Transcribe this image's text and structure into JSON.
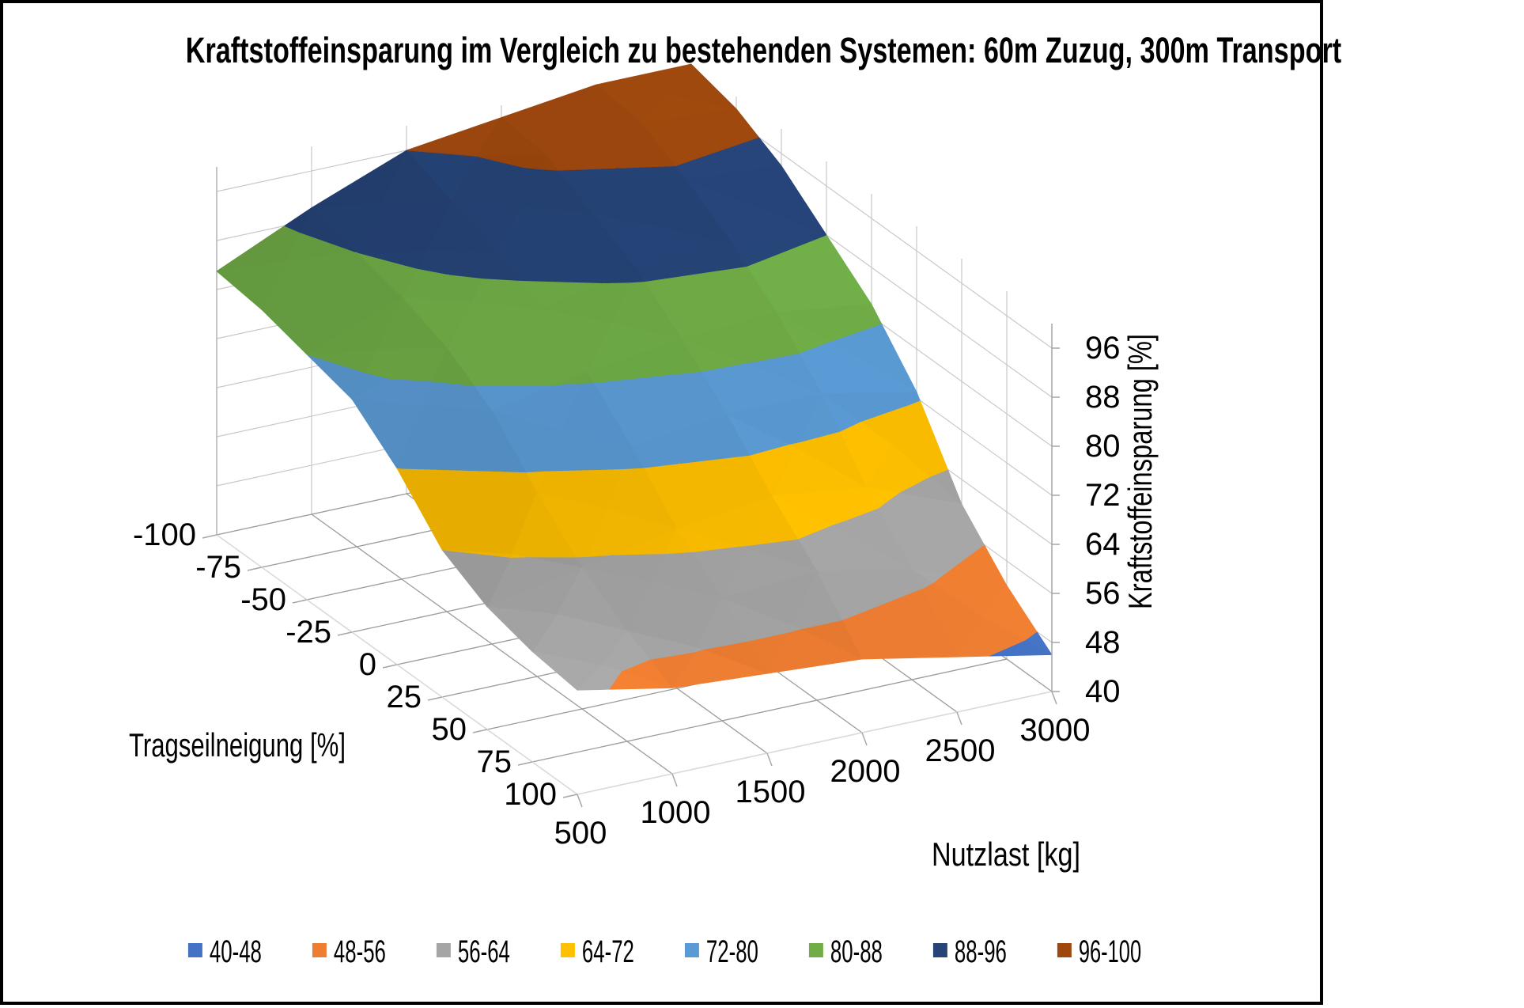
{
  "frame": {
    "background": "#FFFFFF",
    "border_color": "#000000"
  },
  "title": "Kraftstoffeinsparung im Vergleich zu bestehenden Systemen: 60m Zuzug, 300m Transport",
  "chart_data": {
    "type": "surface",
    "title": "Kraftstoffeinsparung im Vergleich zu bestehenden Systemen: 60m Zuzug, 300m Transport",
    "x_axis": {
      "label": "Nutzlast [kg]",
      "ticks": [
        500,
        1000,
        1500,
        2000,
        2500,
        3000
      ]
    },
    "y_axis": {
      "label": "Tragseilneigung [%]",
      "ticks": [
        -100,
        -75,
        -50,
        -25,
        0,
        25,
        50,
        75,
        100
      ]
    },
    "z_axis": {
      "label": "Kraftstoffeinsparung [%]",
      "min": 40,
      "max": 100,
      "tick_step": 8,
      "tick_labels": [
        40,
        48,
        56,
        64,
        72,
        80,
        88,
        96
      ]
    },
    "categories_nutzlast_kg": [
      500,
      1000,
      1500,
      2000,
      2500,
      3000
    ],
    "rows_tragseilneigung_pct": [
      -100,
      -75,
      -50,
      -25,
      0,
      25,
      50,
      75,
      100
    ],
    "values_kraftstoffeinsparung_pct": [
      [
        83,
        90,
        96,
        98,
        100,
        100
      ],
      [
        82,
        88,
        93,
        97,
        99,
        98
      ],
      [
        80,
        86,
        90,
        93,
        95,
        94
      ],
      [
        78,
        83,
        86,
        89,
        90,
        88
      ],
      [
        72,
        78,
        81,
        83,
        84,
        82
      ],
      [
        64,
        70,
        74,
        76,
        76,
        73
      ],
      [
        60,
        63,
        66,
        68,
        66,
        60
      ],
      [
        58,
        58,
        60,
        61,
        58,
        52
      ],
      [
        57,
        54,
        53,
        52,
        49,
        46
      ]
    ],
    "bands": [
      {
        "label": "40-48",
        "min": 40,
        "max": 48,
        "color": "#4472C4"
      },
      {
        "label": "48-56",
        "min": 48,
        "max": 56,
        "color": "#ED7D31"
      },
      {
        "label": "56-64",
        "min": 56,
        "max": 64,
        "color": "#A5A5A5"
      },
      {
        "label": "64-72",
        "min": 64,
        "max": 72,
        "color": "#FFC000"
      },
      {
        "label": "72-80",
        "min": 72,
        "max": 80,
        "color": "#5B9BD5"
      },
      {
        "label": "80-88",
        "min": 80,
        "max": 88,
        "color": "#70AD47"
      },
      {
        "label": "88-96",
        "min": 88,
        "max": 96,
        "color": "#264478"
      },
      {
        "label": "96-100",
        "min": 96,
        "max": 100,
        "color": "#9E480E"
      }
    ],
    "legend_position": "bottom",
    "grid": true,
    "wall_grid": true
  }
}
